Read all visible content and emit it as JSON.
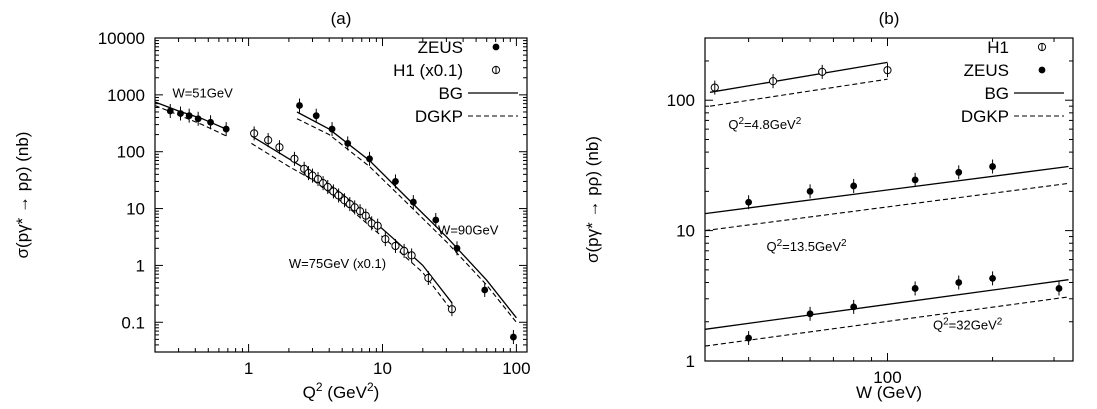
{
  "chart_data": [
    {
      "type": "scatter",
      "title": "(a)",
      "xlabel": "Q",
      "xlabel_sup": "2",
      "xlabel_unit_pre": " (GeV",
      "xlabel_unit_sup": "2",
      "xlabel_unit_post": ")",
      "ylabel": "σ(pγ* → pρ) (nb)",
      "xscale": "log",
      "yscale": "log",
      "xlim": [
        0.2,
        120
      ],
      "ylim": [
        0.03,
        10000
      ],
      "xticks": [
        {
          "v": 1,
          "label": "1"
        },
        {
          "v": 10,
          "label": "10"
        },
        {
          "v": 100,
          "label": "100"
        }
      ],
      "yticks": [
        {
          "v": 0.1,
          "label": "0.1"
        },
        {
          "v": 1,
          "label": "1"
        },
        {
          "v": 10,
          "label": "10"
        },
        {
          "v": 100,
          "label": "100"
        },
        {
          "v": 1000,
          "label": "1000"
        },
        {
          "v": 10000,
          "label": "10000"
        }
      ],
      "legend": {
        "placement": "top-right",
        "entries": [
          {
            "label": "ZEUS",
            "marker": "filled-circle"
          },
          {
            "label": "H1 (x0.1)",
            "marker": "open-circle"
          },
          {
            "label": "BG",
            "line": "solid"
          },
          {
            "label": "DGKP",
            "line": "dashed"
          }
        ]
      },
      "annotations": [
        {
          "text": "W=51GeV",
          "x": 0.27,
          "y": 900
        },
        {
          "text": "W=75GeV (x0.1)",
          "x": 2.0,
          "y": 0.9
        },
        {
          "text": "W=90GeV",
          "x": 26,
          "y": 3.5
        }
      ],
      "series": [
        {
          "marker": "filled-circle",
          "group": "W=51GeV",
          "points": [
            [
              0.26,
              520
            ],
            [
              0.31,
              470
            ],
            [
              0.36,
              430
            ],
            [
              0.42,
              380
            ],
            [
              0.52,
              330
            ],
            [
              0.68,
              250
            ]
          ]
        },
        {
          "marker": "open-circle",
          "group": "W=75GeV (x0.1)",
          "points": [
            [
              1.1,
              210
            ],
            [
              1.4,
              160
            ],
            [
              1.7,
              120
            ],
            [
              2.2,
              75
            ],
            [
              2.6,
              50
            ],
            [
              2.8,
              42
            ],
            [
              3.0,
              38
            ],
            [
              3.3,
              33
            ],
            [
              3.6,
              28
            ],
            [
              3.9,
              24
            ],
            [
              4.3,
              20
            ],
            [
              4.7,
              17
            ],
            [
              5.2,
              14
            ],
            [
              5.7,
              12
            ],
            [
              6.2,
              10.5
            ],
            [
              6.8,
              9
            ],
            [
              7.5,
              7.5
            ],
            [
              8.3,
              5.5
            ],
            [
              9.2,
              5.0
            ],
            [
              10.5,
              2.9
            ],
            [
              12.5,
              2.2
            ],
            [
              14.5,
              1.8
            ],
            [
              16.5,
              1.5
            ],
            [
              22,
              0.6
            ],
            [
              33,
              0.17
            ]
          ]
        },
        {
          "marker": "filled-circle",
          "group": "W=90GeV",
          "points": [
            [
              2.4,
              650
            ],
            [
              3.2,
              430
            ],
            [
              4.2,
              250
            ],
            [
              5.5,
              140
            ],
            [
              8.0,
              75
            ],
            [
              12.5,
              30
            ],
            [
              17,
              13
            ],
            [
              25,
              6.3
            ],
            [
              36,
              2.0
            ],
            [
              58,
              0.37
            ],
            [
              95,
              0.055
            ]
          ]
        },
        {
          "line": "solid",
          "name": "BG",
          "segments": [
            [
              [
                0.2,
                750
              ],
              [
                0.3,
                520
              ],
              [
                0.45,
                380
              ],
              [
                0.68,
                250
              ]
            ],
            [
              [
                1.05,
                190
              ],
              [
                2.0,
                75
              ],
              [
                3.0,
                42
              ],
              [
                5.0,
                18
              ],
              [
                8.0,
                7.0
              ],
              [
                12,
                3.0
              ],
              [
                20,
                1.0
              ],
              [
                33,
                0.22
              ]
            ],
            [
              [
                2.3,
                500
              ],
              [
                4.0,
                250
              ],
              [
                8.0,
                70
              ],
              [
                15,
                16
              ],
              [
                30,
                3.2
              ],
              [
                60,
                0.55
              ],
              [
                100,
                0.12
              ]
            ]
          ]
        },
        {
          "line": "dashed",
          "name": "DGKP",
          "segments": [
            [
              [
                0.2,
                650
              ],
              [
                0.3,
                440
              ],
              [
                0.45,
                300
              ],
              [
                0.68,
                190
              ]
            ],
            [
              [
                1.05,
                140
              ],
              [
                2.0,
                55
              ],
              [
                3.0,
                32
              ],
              [
                5.0,
                13
              ],
              [
                8.0,
                5.0
              ],
              [
                12,
                2.2
              ],
              [
                20,
                0.75
              ],
              [
                33,
                0.16
              ]
            ],
            [
              [
                2.3,
                380
              ],
              [
                4.0,
                200
              ],
              [
                8.0,
                55
              ],
              [
                15,
                13
              ],
              [
                30,
                2.6
              ],
              [
                60,
                0.45
              ],
              [
                100,
                0.1
              ]
            ]
          ]
        }
      ]
    },
    {
      "type": "scatter",
      "title": "(b)",
      "xlabel": "W (GeV)",
      "ylabel": "σ(pγ* → pρ) (nb)",
      "xscale": "log",
      "yscale": "log",
      "xlim": [
        30,
        340
      ],
      "ylim": [
        1,
        300
      ],
      "xticks": [
        {
          "v": 100,
          "label": "100"
        }
      ],
      "yticks": [
        {
          "v": 1,
          "label": "1"
        },
        {
          "v": 10,
          "label": "10"
        },
        {
          "v": 100,
          "label": "100"
        }
      ],
      "legend": {
        "placement": "top-right",
        "entries": [
          {
            "label": "H1",
            "marker": "open-circle"
          },
          {
            "label": "ZEUS",
            "marker": "filled-circle"
          },
          {
            "label": "BG",
            "line": "solid"
          },
          {
            "label": "DGKP",
            "line": "dashed"
          }
        ]
      },
      "annotations": [
        {
          "q2_pre": "Q",
          "q2_sup": "2",
          "q2_val": "=4.8GeV",
          "q2_valsup": "2",
          "x": 35,
          "y": 60
        },
        {
          "q2_pre": "Q",
          "q2_sup": "2",
          "q2_val": "=13.5GeV",
          "q2_valsup": "2",
          "x": 45,
          "y": 7.0
        },
        {
          "q2_pre": "Q",
          "q2_sup": "2",
          "q2_val": "=32GeV",
          "q2_valsup": "2",
          "x": 135,
          "y": 1.75
        }
      ],
      "series": [
        {
          "marker": "open-circle",
          "group": "Q2=4.8GeV2",
          "points": [
            [
              32,
              125
            ],
            [
              47,
              140
            ],
            [
              65,
              165
            ],
            [
              100,
              170
            ]
          ]
        },
        {
          "marker": "filled-circle",
          "group": "Q2=13.5GeV2",
          "points": [
            [
              40,
              16.5
            ],
            [
              60,
              20
            ],
            [
              80,
              22
            ],
            [
              120,
              24.5
            ],
            [
              160,
              28
            ],
            [
              200,
              31
            ]
          ]
        },
        {
          "marker": "filled-circle",
          "group": "Q2=32GeV2",
          "points": [
            [
              40,
              1.5
            ],
            [
              60,
              2.3
            ],
            [
              80,
              2.6
            ],
            [
              120,
              3.6
            ],
            [
              160,
              4.0
            ],
            [
              200,
              4.3
            ],
            [
              310,
              3.6
            ]
          ]
        },
        {
          "line": "solid",
          "name": "BG",
          "segments": [
            [
              [
                31,
                115
              ],
              [
                100,
                195
              ]
            ],
            [
              [
                30,
                13.5
              ],
              [
                330,
                31
              ]
            ],
            [
              [
                30,
                1.75
              ],
              [
                330,
                4.2
              ]
            ]
          ]
        },
        {
          "line": "dashed",
          "name": "DGKP",
          "segments": [
            [
              [
                31,
                90
              ],
              [
                100,
                145
              ]
            ],
            [
              [
                30,
                10
              ],
              [
                330,
                23
              ]
            ],
            [
              [
                30,
                1.3
              ],
              [
                330,
                3.1
              ]
            ]
          ]
        }
      ]
    }
  ]
}
